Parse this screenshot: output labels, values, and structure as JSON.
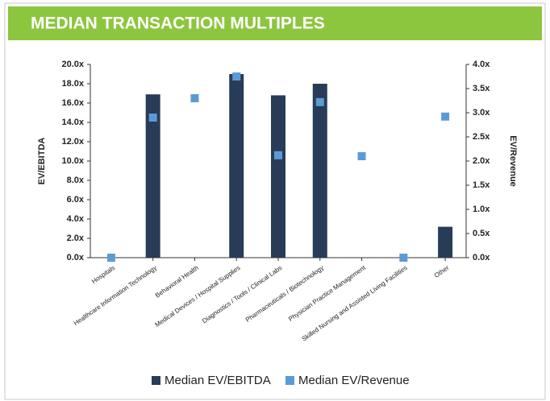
{
  "chart_data": {
    "type": "bar",
    "title": "MEDIAN TRANSACTION MULTIPLES",
    "y_label": "EV/EBITDA",
    "y2_label": "EV/Revenue",
    "categories": [
      "Hospitals",
      "Healthcare Information Technology",
      "Behavioral Health",
      "Medical Devices / Hospital Supplies",
      "Diagnostics / Tools / Clinical Labs",
      "Pharmaceuticals / Biotechnology",
      "Physician Practice Management",
      "Skilled Nursing and Assisted Living Facilities",
      "Other"
    ],
    "series": [
      {
        "name": "Median EV/EBITDA",
        "color": "#283c58",
        "values": [
          null,
          16.9,
          null,
          19.0,
          16.8,
          18.0,
          null,
          null,
          3.2
        ]
      },
      {
        "name": "Median EV/Revenue",
        "color": "#5b9bd5",
        "axis": "y2",
        "marker": "square",
        "values": [
          0.0,
          2.9,
          3.3,
          3.75,
          2.12,
          3.22,
          2.1,
          0.0,
          2.92
        ]
      }
    ],
    "ylim": [
      0,
      20
    ],
    "yticks": [
      {
        "value": 0,
        "label": "0.0x"
      },
      {
        "value": 2,
        "label": "2.0x"
      },
      {
        "value": 4,
        "label": "4.0x"
      },
      {
        "value": 6,
        "label": "6.0x"
      },
      {
        "value": 8,
        "label": "8.0x"
      },
      {
        "value": 10,
        "label": "10.0x"
      },
      {
        "value": 12,
        "label": "12.0x"
      },
      {
        "value": 14,
        "label": "14.0x"
      },
      {
        "value": 16,
        "label": "16.0x"
      },
      {
        "value": 18,
        "label": "18.0x"
      },
      {
        "value": 20,
        "label": "20.0x"
      }
    ],
    "y2lim": [
      0,
      4
    ],
    "y2ticks": [
      {
        "value": 0,
        "label": "0.0x"
      },
      {
        "value": 0.5,
        "label": "0.5x"
      },
      {
        "value": 1,
        "label": "1.0x"
      },
      {
        "value": 1.5,
        "label": "1.5x"
      },
      {
        "value": 2,
        "label": "2.0x"
      },
      {
        "value": 2.5,
        "label": "2.5x"
      },
      {
        "value": 3,
        "label": "3.0x"
      },
      {
        "value": 3.5,
        "label": "3.5x"
      },
      {
        "value": 4,
        "label": "4.0x"
      }
    ],
    "legend": "bottom"
  }
}
